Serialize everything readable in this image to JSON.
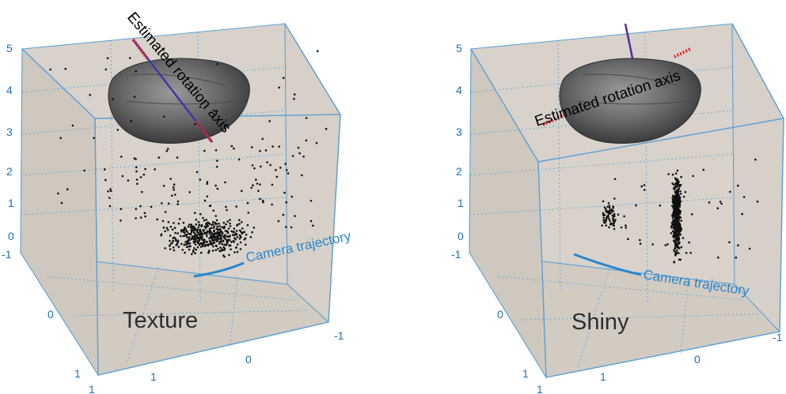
{
  "panels": [
    {
      "label": "Texture",
      "axis_label": "Estimated rotation axis",
      "camera_label": "Camera trajectory",
      "z_ticks": [
        "5",
        "4",
        "3",
        "2",
        "1",
        "0"
      ],
      "x_ticks_left": [
        "-1",
        "0",
        "1"
      ],
      "bottom_ticks": [
        "1",
        "1",
        "0",
        "-1"
      ]
    },
    {
      "label": "Shiny",
      "axis_label": "Estimated rotation axis",
      "camera_label": "Camera trajectory",
      "z_ticks": [
        "5",
        "4",
        "3",
        "2",
        "1",
        "0"
      ],
      "x_ticks_left": [
        "-1",
        "0",
        "1"
      ],
      "bottom_ticks": [
        "1",
        "1",
        "0",
        "-1"
      ]
    }
  ],
  "colors": {
    "box_fill": "#d8d2ca",
    "box_edge": "#5aa0d6",
    "grid": "#5aa0d6",
    "points": "#111111",
    "axis_red": "#e8202a",
    "axis_blue": "#3a3aa8",
    "camera": "#2a86cc"
  }
}
